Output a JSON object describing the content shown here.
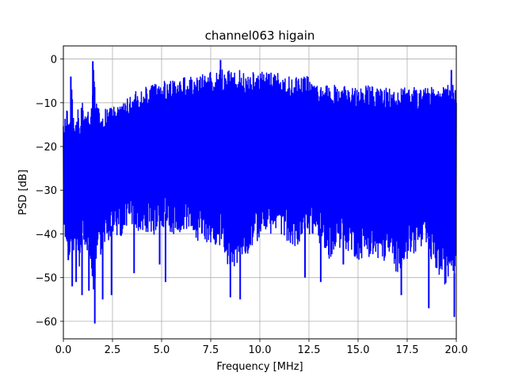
{
  "chart_data": {
    "type": "line",
    "title": "channel063 higain",
    "xlabel": "Frequency [MHz]",
    "ylabel": "PSD [dB]",
    "xlim": [
      0,
      20
    ],
    "ylim": [
      -64,
      3
    ],
    "xticks": [
      0,
      2.5,
      5,
      7.5,
      10,
      12.5,
      15,
      17.5,
      20
    ],
    "xtick_labels": [
      "0.0",
      "2.5",
      "5.0",
      "7.5",
      "10.0",
      "12.5",
      "15.0",
      "17.5",
      "20.0"
    ],
    "yticks": [
      0,
      -10,
      -20,
      -30,
      -40,
      -50,
      -60
    ],
    "ytick_labels": [
      "0",
      "−10",
      "−20",
      "−30",
      "−40",
      "−50",
      "−60"
    ],
    "grid": true,
    "legend": false,
    "series": [
      {
        "color": "#0000ff",
        "upper_envelope": {
          "x": [
            0.0,
            0.2,
            0.3,
            0.45,
            0.55,
            0.7,
            0.85,
            1.0,
            1.2,
            1.4,
            1.55,
            1.7,
            2.0,
            2.5,
            3.0,
            3.5,
            4.0,
            4.5,
            5.0,
            5.5,
            6.0,
            6.5,
            7.0,
            7.5,
            8.0,
            8.5,
            9.0,
            9.5,
            10.0,
            10.5,
            11.0,
            11.5,
            12.0,
            12.5,
            13.0,
            13.5,
            14.0,
            14.5,
            15.0,
            15.5,
            16.0,
            16.5,
            17.0,
            17.5,
            18.0,
            18.5,
            19.0,
            19.5,
            19.75,
            19.9,
            20.0
          ],
          "y": [
            -12,
            -10,
            -13,
            -4,
            -13,
            -9.5,
            -11,
            -8,
            -10.5,
            -10,
            -0.5,
            -9.5,
            -10,
            -9.5,
            -8,
            -6.5,
            -5,
            -4.5,
            -3.5,
            -3.5,
            -2.5,
            -2.5,
            -2,
            -1.5,
            -1,
            -1,
            -1,
            -1.5,
            -1.5,
            -1.5,
            -1.5,
            -2.5,
            -2.5,
            -2.5,
            -4.5,
            -4.5,
            -4.5,
            -4.5,
            -4.5,
            -4.5,
            -5,
            -5,
            -5,
            -5,
            -5,
            -5,
            -5,
            -4.5,
            -2.5,
            -5.5,
            -6
          ]
        },
        "lower_envelope": {
          "x": [
            0.0,
            0.2,
            0.3,
            0.45,
            0.55,
            0.7,
            0.85,
            1.0,
            1.2,
            1.4,
            1.55,
            1.7,
            2.0,
            2.5,
            3.0,
            3.5,
            4.0,
            4.5,
            5.0,
            5.5,
            6.0,
            6.5,
            7.0,
            7.5,
            8.0,
            8.5,
            9.0,
            9.5,
            10.0,
            10.5,
            11.0,
            11.5,
            12.0,
            12.5,
            13.0,
            13.5,
            14.0,
            14.5,
            15.0,
            15.5,
            16.0,
            16.5,
            17.0,
            17.5,
            18.0,
            18.5,
            19.0,
            19.5,
            19.75,
            19.9,
            20.0
          ],
          "y": [
            -45,
            -50,
            -52,
            -51,
            -52,
            -49,
            -55,
            -48,
            -50,
            -55,
            -61,
            -53,
            -50,
            -48,
            -47,
            -46,
            -45,
            -47,
            -45,
            -46,
            -46,
            -47,
            -48,
            -48,
            -49,
            -55,
            -52,
            -50,
            -47,
            -46,
            -46,
            -48,
            -50,
            -46,
            -48,
            -52,
            -49,
            -50,
            -52,
            -51,
            -53,
            -52,
            -55,
            -52,
            -50,
            -50,
            -55,
            -58,
            -54,
            -59,
            -50
          ]
        },
        "dips": [
          {
            "x": 0.25,
            "y": -46
          },
          {
            "x": 0.45,
            "y": -52
          },
          {
            "x": 0.65,
            "y": -51
          },
          {
            "x": 0.95,
            "y": -54
          },
          {
            "x": 1.3,
            "y": -53
          },
          {
            "x": 1.6,
            "y": -60.5
          },
          {
            "x": 2.0,
            "y": -55
          },
          {
            "x": 2.45,
            "y": -54
          },
          {
            "x": 3.6,
            "y": -49
          },
          {
            "x": 4.9,
            "y": -47
          },
          {
            "x": 5.2,
            "y": -51
          },
          {
            "x": 8.5,
            "y": -54.5
          },
          {
            "x": 9.0,
            "y": -55
          },
          {
            "x": 12.3,
            "y": -50
          },
          {
            "x": 13.1,
            "y": -51
          },
          {
            "x": 14.25,
            "y": -47
          },
          {
            "x": 17.2,
            "y": -54
          },
          {
            "x": 18.6,
            "y": -57
          },
          {
            "x": 19.9,
            "y": -59
          }
        ],
        "peaks": [
          {
            "x": 0.38,
            "y": -4
          },
          {
            "x": 1.5,
            "y": -0.5
          },
          {
            "x": 8.0,
            "y": -0.2
          },
          {
            "x": 19.75,
            "y": -2.5
          }
        ]
      }
    ]
  }
}
